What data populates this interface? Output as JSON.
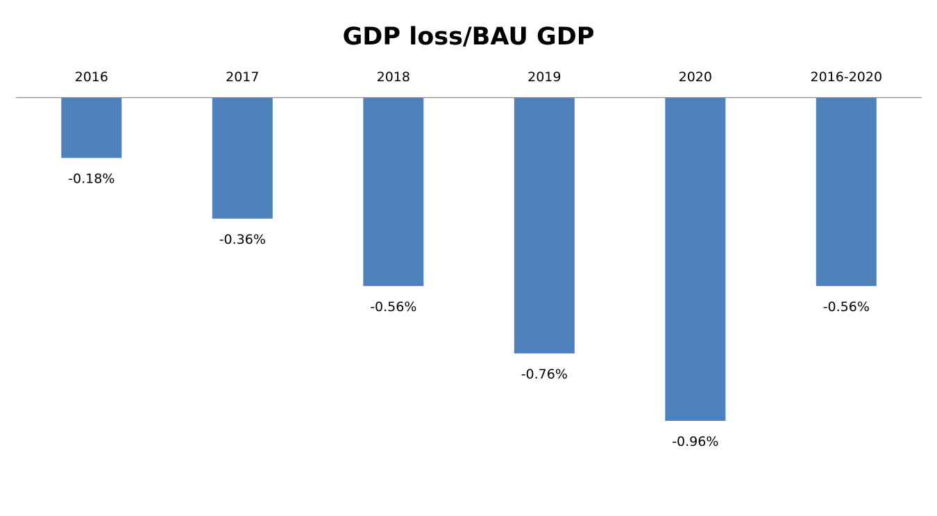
{
  "chart_data": {
    "type": "bar",
    "title": "GDP loss/BAU GDP",
    "categories": [
      "2016",
      "2017",
      "2018",
      "2019",
      "2020",
      "2016-2020"
    ],
    "values": [
      -0.18,
      -0.36,
      -0.56,
      -0.76,
      -0.96,
      -0.56
    ],
    "data_labels": [
      "-0.18%",
      "-0.36%",
      "-0.56%",
      "-0.76%",
      "-0.96%",
      "-0.56%"
    ],
    "xlabel": "",
    "ylabel": "",
    "ylim": [
      -0.96,
      0
    ],
    "x_axis_position": "top",
    "grid": false,
    "legend": "none",
    "bar_color": "#4f81bd",
    "axis_color": "#8c8c8c"
  }
}
